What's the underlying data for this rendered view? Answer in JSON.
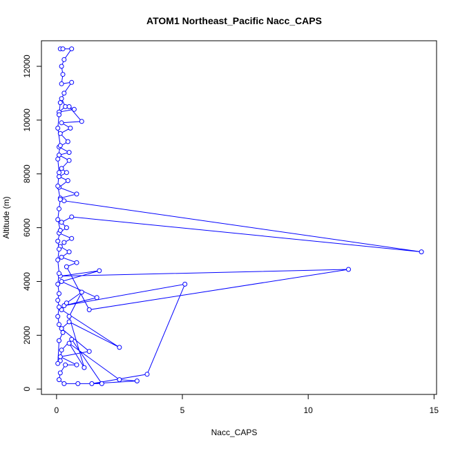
{
  "chart_data": {
    "type": "line",
    "title": "ATOM1 Northeast_Pacific Nacc_CAPS",
    "xlabel": "Nacc_CAPS",
    "ylabel": "Altitude (m)",
    "xlim": [
      -0.6,
      15.1
    ],
    "ylim": [
      -200,
      12950
    ],
    "xticks": [
      0,
      5,
      10,
      15
    ],
    "yticks": [
      0,
      2000,
      4000,
      6000,
      8000,
      10000,
      12000
    ],
    "grid": false,
    "color": "#0000ff",
    "series": [
      {
        "points": [
          [
            0.15,
            12650
          ],
          [
            0.25,
            12650
          ],
          [
            0.6,
            12650
          ],
          [
            0.3,
            12250
          ],
          [
            0.2,
            12000
          ],
          [
            0.25,
            11700
          ],
          [
            0.2,
            11350
          ],
          [
            0.6,
            11400
          ],
          [
            0.3,
            11000
          ],
          [
            0.2,
            10800
          ],
          [
            0.35,
            10500
          ],
          [
            0.1,
            10300
          ],
          [
            0.7,
            10400
          ],
          [
            0.5,
            10500
          ],
          [
            1.0,
            9950
          ],
          [
            0.2,
            9900
          ],
          [
            0.55,
            9700
          ],
          [
            0.15,
            9500
          ],
          [
            0.45,
            9200
          ],
          [
            0.1,
            9000
          ],
          [
            0.5,
            8800
          ],
          [
            0.1,
            8700
          ],
          [
            0.5,
            8500
          ],
          [
            0.2,
            8200
          ],
          [
            0.4,
            8050
          ],
          [
            0.1,
            7900
          ],
          [
            0.45,
            7750
          ],
          [
            0.1,
            7500
          ],
          [
            0.8,
            7250
          ],
          [
            0.15,
            7100
          ],
          [
            0.3,
            7000
          ],
          [
            14.5,
            5100
          ],
          [
            0.6,
            6400
          ],
          [
            0.2,
            6200
          ],
          [
            0.4,
            6000
          ],
          [
            0.1,
            5800
          ],
          [
            0.6,
            5600
          ],
          [
            0.3,
            5450
          ],
          [
            0.15,
            5300
          ],
          [
            0.5,
            5100
          ],
          [
            0.2,
            4900
          ],
          [
            0.8,
            4700
          ],
          [
            0.4,
            4550
          ],
          [
            1.3,
            2950
          ],
          [
            11.6,
            4450
          ],
          [
            0.15,
            4200
          ],
          [
            1.7,
            4400
          ],
          [
            0.2,
            4000
          ],
          [
            1.6,
            3400
          ],
          [
            0.3,
            3100
          ],
          [
            5.1,
            3900
          ],
          [
            3.6,
            550
          ],
          [
            1.4,
            200
          ],
          [
            3.2,
            300
          ],
          [
            2.5,
            350
          ],
          [
            0.5,
            1700
          ],
          [
            1.1,
            800
          ],
          [
            0.5,
            2700
          ],
          [
            1.0,
            3600
          ],
          [
            0.4,
            3200
          ],
          [
            0.2,
            2950
          ],
          [
            2.5,
            1550
          ],
          [
            0.5,
            2500
          ],
          [
            0.2,
            2250
          ],
          [
            1.3,
            1400
          ],
          [
            0.15,
            1200
          ],
          [
            0.8,
            900
          ],
          [
            0.35,
            900
          ],
          [
            0.15,
            600
          ],
          [
            0.1,
            350
          ],
          [
            0.3,
            200
          ],
          [
            0.85,
            200
          ],
          [
            1.8,
            200
          ],
          [
            0.6,
            1850
          ],
          [
            0.2,
            1450
          ],
          [
            0.15,
            1050
          ],
          [
            0.05,
            950
          ],
          [
            0.1,
            1800
          ],
          [
            0.25,
            2100
          ],
          [
            0.1,
            2400
          ],
          [
            0.05,
            2700
          ],
          [
            0.1,
            3050
          ],
          [
            0.05,
            3300
          ],
          [
            0.1,
            3550
          ],
          [
            0.05,
            3900
          ],
          [
            0.1,
            4300
          ],
          [
            0.05,
            4800
          ],
          [
            0.1,
            5200
          ],
          [
            0.05,
            5500
          ],
          [
            0.15,
            5900
          ],
          [
            0.05,
            6300
          ],
          [
            0.1,
            6700
          ],
          [
            0.15,
            7050
          ],
          [
            0.05,
            7550
          ],
          [
            0.1,
            8050
          ],
          [
            0.05,
            8550
          ],
          [
            0.15,
            9050
          ],
          [
            0.05,
            9700
          ],
          [
            0.1,
            10200
          ],
          [
            0.15,
            10650
          ]
        ]
      }
    ]
  }
}
